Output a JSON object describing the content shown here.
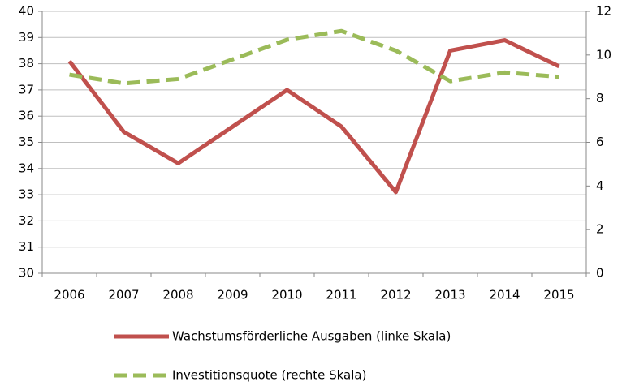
{
  "chart_data": {
    "type": "line",
    "categories": [
      "2006",
      "2007",
      "2008",
      "2009",
      "2010",
      "2011",
      "2012",
      "2013",
      "2014",
      "2015"
    ],
    "series": [
      {
        "name": "Wachstumsförderliche Ausgaben (linke Skala)",
        "color": "#c0504d",
        "dash": "solid",
        "values": [
          38.1,
          35.4,
          34.2,
          35.6,
          37.0,
          35.6,
          33.1,
          38.5,
          38.9,
          37.9
        ]
      },
      {
        "name": "Investitionsquote (rechte Skala)",
        "color": "#9bbb59",
        "dash": "dashed",
        "axis": "y2",
        "values": [
          9.1,
          8.7,
          8.9,
          9.8,
          10.7,
          11.1,
          10.2,
          8.8,
          9.2,
          9.0
        ]
      }
    ],
    "ylim": [
      30,
      40
    ],
    "yticks": [
      30,
      31,
      32,
      33,
      34,
      35,
      36,
      37,
      38,
      39,
      40
    ],
    "y2lim": [
      0,
      12
    ],
    "y2ticks": [
      0,
      2,
      4,
      6,
      8,
      10,
      12
    ],
    "grid": true,
    "legend": "bottom"
  }
}
